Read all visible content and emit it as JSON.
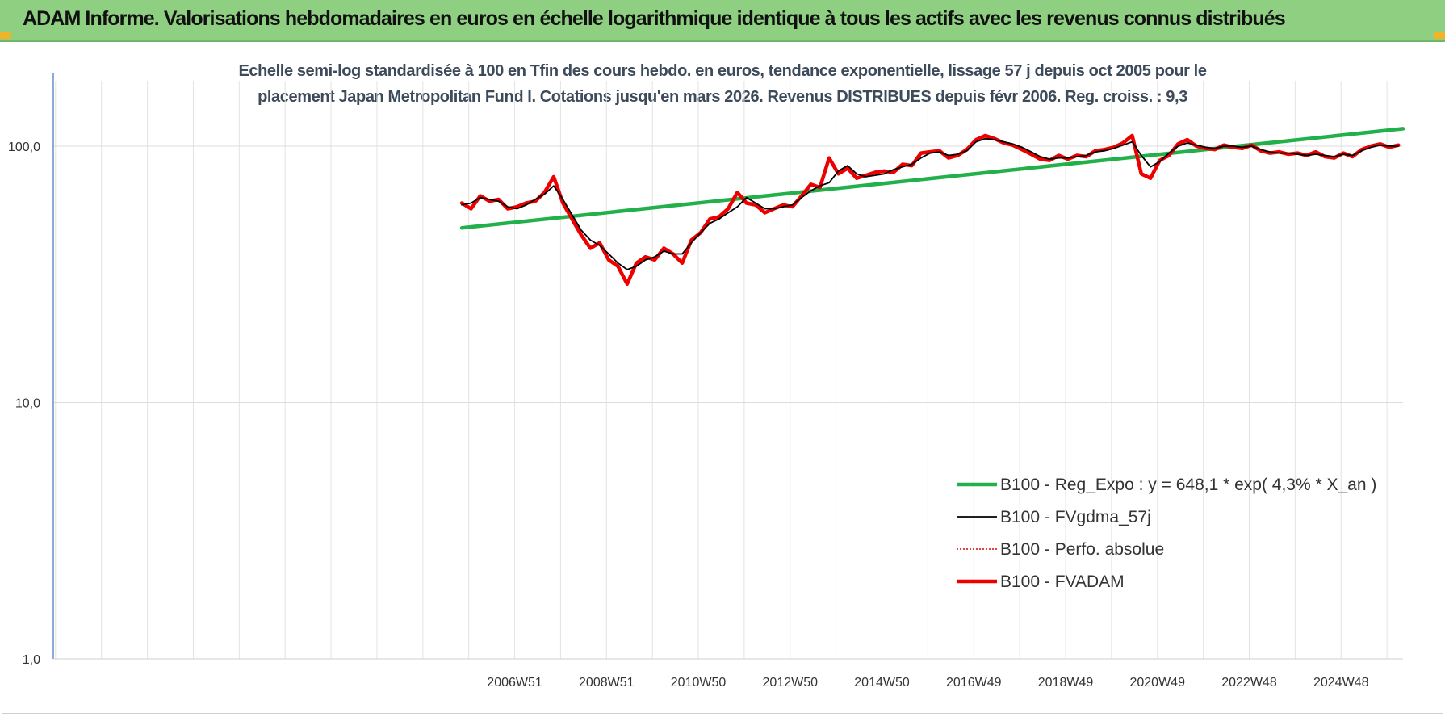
{
  "header": {
    "title": "ADAM Informe. Valorisations hebdomadaires en euros en échelle logarithmique identique à tous les actifs avec les revenus connus distribués",
    "background": "#8fcf82"
  },
  "chart_data": {
    "type": "line",
    "title_lines": [
      "Echelle semi-log standardisée à 100 en Tfin des cours hebdo. en euros, tendance exponentielle, lissage 57 j depuis oct 2005 pour le",
      "placement Japan Metropolitan Fund I. Cotations jusqu'en mars 2026. Revenus DISTRIBUES depuis févr 2006. Reg. croiss. : 9,3"
    ],
    "y_scale": "log",
    "ylim": [
      1,
      180
    ],
    "y_ticks": [
      {
        "value": 1,
        "label": "1,0"
      },
      {
        "value": 10,
        "label": "10,0"
      },
      {
        "value": 100,
        "label": "100,0"
      }
    ],
    "x_range": [
      1996.9,
      2026.3
    ],
    "x_ticks": [
      {
        "pos": 2006.95,
        "label": "2006W51"
      },
      {
        "pos": 2008.95,
        "label": "2008W51"
      },
      {
        "pos": 2010.95,
        "label": "2010W50"
      },
      {
        "pos": 2012.95,
        "label": "2012W50"
      },
      {
        "pos": 2014.95,
        "label": "2014W50"
      },
      {
        "pos": 2016.95,
        "label": "2016W49"
      },
      {
        "pos": 2018.95,
        "label": "2018W49"
      },
      {
        "pos": 2020.95,
        "label": "2020W49"
      },
      {
        "pos": 2022.95,
        "label": "2022W48"
      },
      {
        "pos": 2024.95,
        "label": "2024W48"
      }
    ],
    "grid": {
      "vertical": true,
      "horizontal": true
    },
    "legend_position": "bottom-right",
    "series": [
      {
        "name": "B100 - Reg_Expo : y = 648,1 * exp( 4,3% *  X_an )",
        "color": "#22b04b",
        "style": "solid-thick",
        "x": [
          2005.8,
          2026.3
        ],
        "y": [
          48,
          117
        ]
      },
      {
        "name": "B100 - FVgdma_57j",
        "color": "#000000",
        "style": "solid-thin",
        "x": [
          2005.8,
          2006.0,
          2006.2,
          2006.4,
          2006.6,
          2006.8,
          2007.0,
          2007.2,
          2007.4,
          2007.6,
          2007.8,
          2008.0,
          2008.2,
          2008.4,
          2008.6,
          2008.8,
          2009.0,
          2009.2,
          2009.4,
          2009.6,
          2009.8,
          2010.0,
          2010.2,
          2010.4,
          2010.6,
          2010.8,
          2011.0,
          2011.2,
          2011.4,
          2011.6,
          2011.8,
          2012.0,
          2012.2,
          2012.4,
          2012.6,
          2012.8,
          2013.0,
          2013.2,
          2013.4,
          2013.6,
          2013.8,
          2014.0,
          2014.2,
          2014.4,
          2014.6,
          2014.8,
          2015.0,
          2015.2,
          2015.4,
          2015.6,
          2015.8,
          2016.0,
          2016.2,
          2016.4,
          2016.6,
          2016.8,
          2017.0,
          2017.2,
          2017.4,
          2017.6,
          2017.8,
          2018.0,
          2018.2,
          2018.4,
          2018.6,
          2018.8,
          2019.0,
          2019.2,
          2019.4,
          2019.6,
          2019.8,
          2020.0,
          2020.2,
          2020.4,
          2020.6,
          2020.8,
          2021.0,
          2021.2,
          2021.4,
          2021.6,
          2021.8,
          2022.0,
          2022.2,
          2022.4,
          2022.6,
          2022.8,
          2023.0,
          2023.2,
          2023.4,
          2023.6,
          2023.8,
          2024.0,
          2024.2,
          2024.4,
          2024.6,
          2024.8,
          2025.0,
          2025.2,
          2025.4,
          2025.6,
          2025.8,
          2026.0,
          2026.2
        ],
        "y": [
          59,
          60,
          63,
          62,
          61,
          58,
          57,
          59,
          62,
          65,
          70,
          62,
          54,
          47,
          43,
          41,
          38,
          35,
          33,
          34,
          36,
          37,
          39,
          38,
          38,
          42,
          46,
          50,
          52,
          55,
          58,
          63,
          60,
          57,
          57,
          58,
          59,
          63,
          67,
          70,
          72,
          80,
          84,
          78,
          76,
          77,
          78,
          81,
          83,
          85,
          90,
          94,
          95,
          92,
          93,
          96,
          104,
          107,
          106,
          104,
          102,
          99,
          95,
          91,
          89,
          90,
          90,
          91,
          92,
          95,
          96,
          98,
          101,
          104,
          92,
          83,
          87,
          94,
          100,
          103,
          101,
          99,
          98,
          100,
          100,
          99,
          100,
          97,
          95,
          94,
          94,
          93,
          92,
          93,
          92,
          91,
          93,
          92,
          96,
          99,
          101,
          100,
          100
        ]
      },
      {
        "name": "B100 - Perfo. absolue",
        "color": "#e00000",
        "style": "dotted",
        "x": [],
        "y": []
      },
      {
        "name": "B100 - FVADAM",
        "color": "#ee0000",
        "style": "solid-thick",
        "x": [
          2005.8,
          2006.0,
          2006.2,
          2006.4,
          2006.6,
          2006.8,
          2007.0,
          2007.2,
          2007.4,
          2007.6,
          2007.8,
          2008.0,
          2008.2,
          2008.4,
          2008.6,
          2008.8,
          2009.0,
          2009.2,
          2009.4,
          2009.6,
          2009.8,
          2010.0,
          2010.2,
          2010.4,
          2010.6,
          2010.8,
          2011.0,
          2011.2,
          2011.4,
          2011.6,
          2011.8,
          2012.0,
          2012.2,
          2012.4,
          2012.6,
          2012.8,
          2013.0,
          2013.2,
          2013.4,
          2013.6,
          2013.8,
          2014.0,
          2014.2,
          2014.4,
          2014.6,
          2014.8,
          2015.0,
          2015.2,
          2015.4,
          2015.6,
          2015.8,
          2016.0,
          2016.2,
          2016.4,
          2016.6,
          2016.8,
          2017.0,
          2017.2,
          2017.4,
          2017.6,
          2017.8,
          2018.0,
          2018.2,
          2018.4,
          2018.6,
          2018.8,
          2019.0,
          2019.2,
          2019.4,
          2019.6,
          2019.8,
          2020.0,
          2020.2,
          2020.4,
          2020.6,
          2020.8,
          2021.0,
          2021.2,
          2021.4,
          2021.6,
          2021.8,
          2022.0,
          2022.2,
          2022.4,
          2022.6,
          2022.8,
          2023.0,
          2023.2,
          2023.4,
          2023.6,
          2023.8,
          2024.0,
          2024.2,
          2024.4,
          2024.6,
          2024.8,
          2025.0,
          2025.2,
          2025.4,
          2025.6,
          2025.8,
          2026.0,
          2026.2
        ],
        "y": [
          60,
          57,
          64,
          61,
          62,
          57,
          58,
          60,
          61,
          66,
          76,
          60,
          52,
          45,
          40,
          42,
          36,
          34,
          29,
          35,
          37,
          36,
          40,
          38,
          35,
          43,
          46,
          52,
          53,
          57,
          66,
          60,
          59,
          55,
          57,
          59,
          58,
          64,
          71,
          69,
          90,
          78,
          82,
          75,
          77,
          79,
          80,
          79,
          85,
          84,
          94,
          95,
          96,
          90,
          92,
          97,
          106,
          110,
          107,
          103,
          101,
          97,
          93,
          89,
          88,
          92,
          89,
          92,
          91,
          96,
          97,
          99,
          103,
          110,
          78,
          75,
          88,
          92,
          102,
          106,
          100,
          98,
          97,
          101,
          99,
          98,
          101,
          96,
          94,
          95,
          93,
          94,
          92,
          95,
          91,
          90,
          94,
          91,
          97,
          100,
          102,
          99,
          101
        ]
      }
    ]
  }
}
